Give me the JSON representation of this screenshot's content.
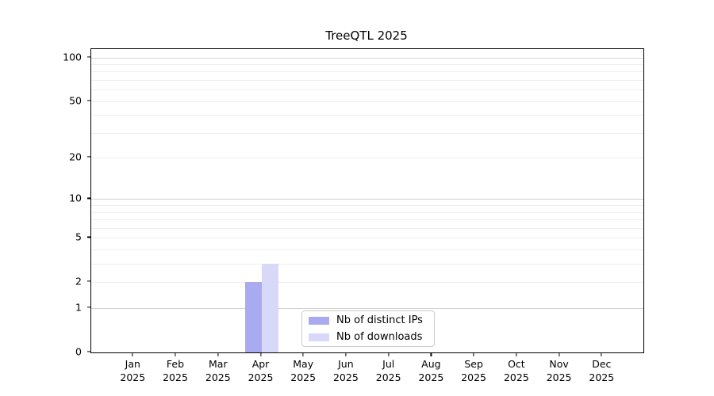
{
  "chart_data": {
    "type": "bar",
    "title": "TreeQTL 2025",
    "x_axis": {
      "months": [
        "Jan",
        "Feb",
        "Mar",
        "Apr",
        "May",
        "Jun",
        "Jul",
        "Aug",
        "Sep",
        "Oct",
        "Nov",
        "Dec"
      ],
      "year": "2025"
    },
    "categories": [
      "Jan 2025",
      "Feb 2025",
      "Mar 2025",
      "Apr 2025",
      "May 2025",
      "Jun 2025",
      "Jul 2025",
      "Aug 2025",
      "Sep 2025",
      "Oct 2025",
      "Nov 2025",
      "Dec 2025"
    ],
    "series": [
      {
        "name": "Nb of distinct IPs",
        "color": "#aaaaf0",
        "values": [
          0,
          0,
          0,
          2,
          0,
          0,
          0,
          0,
          0,
          0,
          0,
          0
        ]
      },
      {
        "name": "Nb of downloads",
        "color": "#d8d8f8",
        "values": [
          0,
          0,
          0,
          3,
          0,
          0,
          0,
          0,
          0,
          0,
          0,
          0
        ]
      }
    ],
    "y_axis": {
      "scale": "log10(1+value)",
      "ylim": [
        0,
        114
      ],
      "tick_values": [
        0,
        1,
        2,
        5,
        10,
        20,
        50,
        100
      ],
      "tick_labels": [
        "0",
        "1",
        "2",
        "5",
        "10",
        "20",
        "50",
        "100"
      ],
      "major_gridlines": [
        1,
        10,
        100
      ],
      "minor_gridlines": [
        2,
        3,
        4,
        5,
        6,
        7,
        8,
        9,
        20,
        30,
        40,
        50,
        60,
        70,
        80,
        90
      ]
    },
    "legend": {
      "position": "lower-center",
      "entries": [
        "Nb of distinct IPs",
        "Nb of downloads"
      ]
    },
    "grid": "horizontal",
    "colors": {
      "major_grid": "#d3d3d3",
      "minor_grid": "#efefef",
      "axis": "#000000",
      "legend_border": "#cccccc",
      "background": "#ffffff"
    }
  }
}
